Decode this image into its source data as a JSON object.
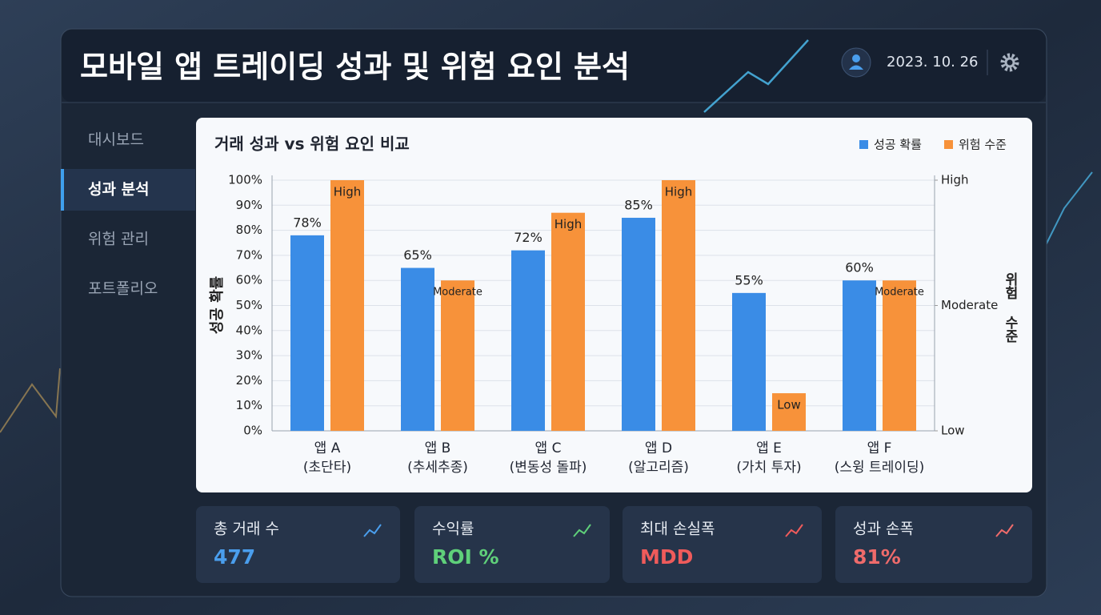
{
  "header": {
    "title": "모바일 앱 트레이딩 성과 및  위험 요인 분석",
    "date": "2023. 10. 26"
  },
  "nav": [
    "대시보드",
    "성과 분석",
    "위험 관리",
    "포트폴리오"
  ],
  "chart_data": {
    "type": "bar",
    "title": "거래 성과 vs 위험 요인 비교",
    "categories": [
      [
        "앱 A",
        "(초단타)"
      ],
      [
        "앱 B",
        "(추세추종)"
      ],
      [
        "앱 C",
        "(변동성 돌파)"
      ],
      [
        "앱 D",
        "(알고리즘)"
      ],
      [
        "앱 E",
        "(가치 투자)"
      ],
      [
        "앱 F",
        "(스윙 트레이딩)"
      ]
    ],
    "series": [
      {
        "name": "성공 확률",
        "color": "#3a8ce6",
        "values": [
          78,
          65,
          72,
          85,
          55,
          60
        ],
        "value_labels": [
          "78%",
          "65%",
          "72%",
          "85%",
          "55%",
          "60%"
        ]
      },
      {
        "name": "위험 수준",
        "color": "#f7923a",
        "axis": "y2",
        "values": [
          100,
          60,
          87,
          100,
          15,
          60
        ],
        "value_labels": [
          "High",
          "Moderate",
          "High",
          "High",
          "Low",
          "Moderate"
        ]
      }
    ],
    "ylabel": "성공 확률",
    "y2label": "위험 수준",
    "ylim": [
      0,
      100
    ],
    "yticks": [
      {
        "value": 0,
        "label": "0%"
      },
      {
        "value": 10,
        "label": "10%"
      },
      {
        "value": 20,
        "label": "20%"
      },
      {
        "value": 30,
        "label": "30%"
      },
      {
        "value": 40,
        "label": "40%"
      },
      {
        "value": 50,
        "label": "50%"
      },
      {
        "value": 60,
        "label": "60%"
      },
      {
        "value": 70,
        "label": "70%"
      },
      {
        "value": 80,
        "label": "80%"
      },
      {
        "value": 90,
        "label": "90%"
      },
      {
        "value": 100,
        "label": "100%"
      }
    ],
    "y2lim": [
      0,
      100
    ],
    "y2ticks": [
      {
        "value": 0,
        "label": "Low"
      },
      {
        "value": 50,
        "label": "Moderate"
      },
      {
        "value": 100,
        "label": "High"
      }
    ],
    "grid": true,
    "legend": "top-right"
  },
  "cards": [
    {
      "title": "총 거래 수",
      "value": 477,
      "color": "#4a9eed"
    },
    {
      "title": "수익률",
      "value": "ROI %",
      "color": "#5fd07a"
    },
    {
      "title": "최대 손실폭",
      "value": "MDD",
      "color": "#ef5b5b"
    },
    {
      "title": "성과 손폭",
      "value": "81%",
      "color": "#ef6b6b"
    }
  ]
}
